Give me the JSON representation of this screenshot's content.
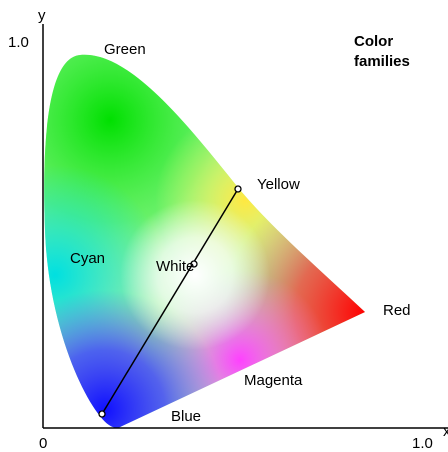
{
  "axes": {
    "y_label": "y",
    "y_max": "1.0",
    "x_min": "0",
    "x_max": "1.0",
    "x_label": "x"
  },
  "title": [
    "Color",
    "families"
  ],
  "regions": [
    "Green",
    "Yellow",
    "Cyan",
    "White",
    "Red",
    "Magenta",
    "Blue"
  ]
}
